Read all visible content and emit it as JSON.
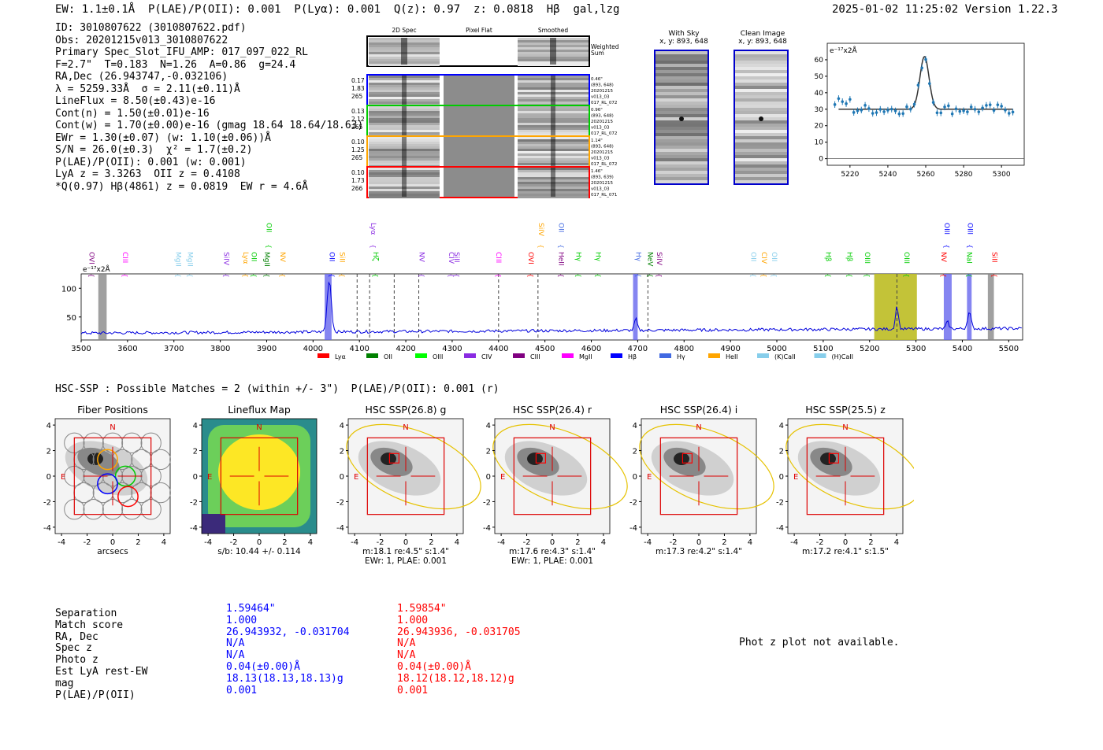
{
  "header": {
    "topline": "EW: 1.1±0.1Å  P(LAE)/P(OII): 0.001  P(Lyα): 0.001  Q(z): 0.97  z: 0.0818  Hβ  gal,lzg",
    "timestamp": "2025-01-02 11:25:02  Version 1.22.3"
  },
  "info_lines": [
    "ID: 3010807622 (3010807622.pdf)",
    "Obs: 20201215v013_3010807622",
    "Primary Spec_Slot_IFU_AMP: 017_097_022_RL",
    "F=2.7\"  T=0.183  N=1.26  A=0.86  g=24.4",
    "RA,Dec (26.943747,-0.032106)",
    "λ = 5259.33Å  σ = 2.11(±0.11)Å",
    "LineFlux = 8.50(±0.43)e-16",
    "Cont(n) = 1.50(±0.01)e-16",
    "Cont(w) = 1.70(±0.00)e-16 (gmag 18.64 18.64/18.63)",
    "EWr = 1.30(±0.07) (w: 1.10(±0.06))Å",
    "S/N = 26.0(±0.3)  χ² = 1.7(±0.2)",
    "P(LAE)/P(OII): 0.001 (w: 0.001)",
    "LyA z = 3.3263  OII z = 0.4108",
    "*Q(0.97) Hβ(4861) z = 0.0819  EW r = 4.6Å"
  ],
  "cutouts": {
    "col_titles": [
      "2D Spec",
      "Pixel Flat",
      "Smoothed"
    ],
    "weighted_label": "Weighted Sum",
    "rows": [
      {
        "stats": [
          "0.17",
          "1.83",
          "265"
        ],
        "note": [
          "0.46\"",
          "(893, 648)",
          "20201215",
          "v013_03",
          "017_RL_072"
        ],
        "color": "#0000ff"
      },
      {
        "stats": [
          "0.13",
          "2.12",
          "265"
        ],
        "note": [
          "0.96\"",
          "(893, 648)",
          "20201215",
          "v013_03",
          "017_RL_072"
        ],
        "color": "#00cc00"
      },
      {
        "stats": [
          "0.10",
          "1.25",
          "265"
        ],
        "note": [
          "1.14\"",
          "(893, 648)",
          "20201215",
          "v013_03",
          "017_RL_072"
        ],
        "color": "#ffa500"
      },
      {
        "stats": [
          "0.10",
          "1.73",
          "266"
        ],
        "note": [
          "1.46\"",
          "(893, 639)",
          "20201215",
          "v013_03",
          "017_RL_071"
        ],
        "color": "#ff0000"
      }
    ],
    "with_sky": {
      "title": "With Sky",
      "coords": "x, y: 893, 648"
    },
    "clean": {
      "title": "Clean Image",
      "coords": "x, y: 893, 648"
    }
  },
  "line_fit": {
    "ylabel": "e⁻¹⁷x2Å",
    "xticks": [
      "5220",
      "5240",
      "5260",
      "5280",
      "5300"
    ],
    "yticks": [
      "0",
      "10",
      "20",
      "30",
      "40",
      "50",
      "60"
    ]
  },
  "spectrum": {
    "ylabel": "e⁻¹⁷x2Å",
    "xticks": [
      "3500",
      "3600",
      "3700",
      "3800",
      "3900",
      "4000",
      "4100",
      "4200",
      "4300",
      "4400",
      "4500",
      "4600",
      "4700",
      "4800",
      "4900",
      "5000",
      "5100",
      "5200",
      "5300",
      "5400",
      "5500"
    ],
    "yticks": [
      "50",
      "100"
    ],
    "legend": [
      {
        "label": "Lyα",
        "color": "#ff0000"
      },
      {
        "label": "OII",
        "color": "#008000"
      },
      {
        "label": "OIII",
        "color": "#00ff00"
      },
      {
        "label": "CIV",
        "color": "#8a2be2"
      },
      {
        "label": "CIII",
        "color": "#800080"
      },
      {
        "label": "MgII",
        "color": "#ff00ff"
      },
      {
        "label": "Hβ",
        "color": "#0000ff"
      },
      {
        "label": "Hγ",
        "color": "#4169e1"
      },
      {
        "label": "HeII",
        "color": "#ffa500"
      },
      {
        "label": "(K)CaII",
        "color": "#87ceeb"
      },
      {
        "label": "(H)CaII",
        "color": "#87ceeb"
      }
    ],
    "line_ids": [
      {
        "w": 3518,
        "t": "OVI",
        "c": "#800080",
        "lvl": 0
      },
      {
        "w": 3590,
        "t": "CIII",
        "c": "#ff00ff",
        "lvl": 0
      },
      {
        "w": 3705,
        "t": "MgII",
        "c": "#87ceeb",
        "lvl": 0
      },
      {
        "w": 3730,
        "t": "MgII",
        "c": "#87ceeb",
        "lvl": 0
      },
      {
        "w": 3808,
        "t": "SiIV",
        "c": "#8a2be2",
        "lvl": 0
      },
      {
        "w": 3850,
        "t": "Lyα",
        "c": "#ffa500",
        "lvl": 0
      },
      {
        "w": 3868,
        "t": "OII",
        "c": "#00cc00",
        "lvl": 0
      },
      {
        "w": 3896,
        "t": "MgII",
        "c": "#008000",
        "lvl": 0
      },
      {
        "w": 3900,
        "t": "OII",
        "c": "#00cc00",
        "lvl": 1
      },
      {
        "w": 3930,
        "t": "NV",
        "c": "#ffa500",
        "lvl": 0
      },
      {
        "w": 4036,
        "t": "OII",
        "c": "#0000ff",
        "lvl": 0
      },
      {
        "w": 4058,
        "t": "SiII",
        "c": "#ffa500",
        "lvl": 0
      },
      {
        "w": 4125,
        "t": "Lyα",
        "c": "#8a2be2",
        "lvl": 1
      },
      {
        "w": 4130,
        "t": "Hζ",
        "c": "#00cc00",
        "lvl": 0
      },
      {
        "w": 4230,
        "t": "NV",
        "c": "#8a2be2",
        "lvl": 0
      },
      {
        "w": 4293,
        "t": "CIV",
        "c": "#8a2be2",
        "lvl": 0
      },
      {
        "w": 4305,
        "t": "SiII",
        "c": "#8a2be2",
        "lvl": 0
      },
      {
        "w": 4395,
        "t": "CIII",
        "c": "#ff00ff",
        "lvl": 0
      },
      {
        "w": 4465,
        "t": "OVI",
        "c": "#ff0000",
        "lvl": 0
      },
      {
        "w": 4487,
        "t": "SiIV",
        "c": "#ffa500",
        "lvl": 1
      },
      {
        "w": 4530,
        "t": "OII",
        "c": "#4169e1",
        "lvl": 1
      },
      {
        "w": 4530,
        "t": "HeII",
        "c": "#800080",
        "lvl": 0
      },
      {
        "w": 4568,
        "t": "Hγ",
        "c": "#00cc00",
        "lvl": 0
      },
      {
        "w": 4610,
        "t": "Hγ",
        "c": "#00cc00",
        "lvl": 0
      },
      {
        "w": 4697,
        "t": "Hγ",
        "c": "#4169e1",
        "lvl": 0
      },
      {
        "w": 4722,
        "t": "NeV",
        "c": "#008000",
        "lvl": 0
      },
      {
        "w": 4742,
        "t": "SiIV",
        "c": "#800080",
        "lvl": 0
      },
      {
        "w": 4945,
        "t": "OII",
        "c": "#87ceeb",
        "lvl": 0
      },
      {
        "w": 4968,
        "t": "CIV",
        "c": "#ffa500",
        "lvl": 0
      },
      {
        "w": 4990,
        "t": "OII",
        "c": "#87ceeb",
        "lvl": 0
      },
      {
        "w": 5106,
        "t": "Hβ",
        "c": "#00cc00",
        "lvl": 0
      },
      {
        "w": 5152,
        "t": "Hβ",
        "c": "#00cc00",
        "lvl": 0
      },
      {
        "w": 5190,
        "t": "OIII",
        "c": "#00cc00",
        "lvl": 0
      },
      {
        "w": 5275,
        "t": "OIII",
        "c": "#00cc00",
        "lvl": 0
      },
      {
        "w": 5355,
        "t": "NV",
        "c": "#ff0000",
        "lvl": 0
      },
      {
        "w": 5362,
        "t": "OIII",
        "c": "#0000ff",
        "lvl": 1
      },
      {
        "w": 5410,
        "t": "NaI",
        "c": "#00cc00",
        "lvl": 0
      },
      {
        "w": 5412,
        "t": "OIII",
        "c": "#0000ff",
        "lvl": 1
      },
      {
        "w": 5465,
        "t": "SiII",
        "c": "#ff0000",
        "lvl": 0
      }
    ]
  },
  "hsc_line": "HSC-SSP : Possible Matches = 2 (within +/- 3\")  P(LAE)/P(OII): 0.001 (r)",
  "panels": [
    {
      "title": "Fiber Positions",
      "caption": "arcsecs",
      "caption2": ""
    },
    {
      "title": "Lineflux Map",
      "caption": "s/b: 10.44 +/- 0.114",
      "caption2": ""
    },
    {
      "title": "HSC SSP(26.8) g",
      "caption": "m:18.1  re:4.5\"  s:1.4\"",
      "caption2": "EWr: 1, PLAE: 0.001"
    },
    {
      "title": "HSC SSP(26.4) r",
      "caption": "m:17.6  re:4.3\"  s:1.4\"",
      "caption2": "EWr: 1, PLAE: 0.001"
    },
    {
      "title": "HSC SSP(26.4) i",
      "caption": "m:17.3  re:4.2\"  s:1.4\"",
      "caption2": ""
    },
    {
      "title": "HSC SSP(25.5) z",
      "caption": "m:17.2  re:4.1\"  s:1.5\"",
      "caption2": ""
    }
  ],
  "panel_axis": {
    "ticks": [
      "-4",
      "-2",
      "0",
      "2",
      "4"
    ],
    "north": "N",
    "east": "E"
  },
  "matches": {
    "labels": [
      "Separation",
      "Match score",
      "RA, Dec",
      "Spec z",
      "Photo z",
      "Est LyA rest-EW",
      "mag",
      "P(LAE)/P(OII)"
    ],
    "col1": [
      "1.59464\"",
      "1.000",
      "26.943932, -0.031704",
      "N/A",
      "N/A",
      "0.04(±0.00)Å",
      "18.13(18.13,18.13)g",
      "0.001"
    ],
    "col2": [
      "1.59854\"",
      "1.000",
      "26.943936, -0.031705",
      "N/A",
      "N/A",
      "0.04(±0.00)Å",
      "18.12(18.12,18.12)g",
      "0.001"
    ]
  },
  "photz_note": "Phot z plot not available."
}
